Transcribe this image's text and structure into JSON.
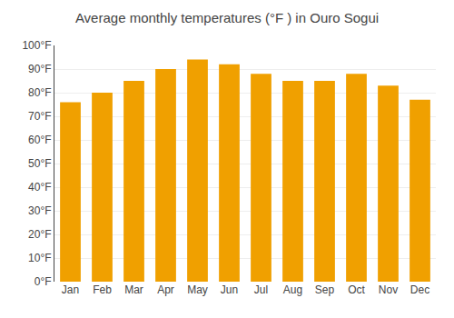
{
  "chart_data": {
    "type": "bar",
    "title": "Average monthly temperatures (°F ) in Ouro Sogui",
    "categories": [
      "Jan",
      "Feb",
      "Mar",
      "Apr",
      "May",
      "Jun",
      "Jul",
      "Aug",
      "Sep",
      "Oct",
      "Nov",
      "Dec"
    ],
    "values": [
      76,
      80,
      85,
      90,
      94,
      92,
      88,
      85,
      85,
      88,
      83,
      77
    ],
    "color": "#F0A000",
    "ylim": [
      0,
      100
    ],
    "yticks": [
      {
        "value": 0,
        "label": "0°F"
      },
      {
        "value": 10,
        "label": "10°F"
      },
      {
        "value": 20,
        "label": "20°F"
      },
      {
        "value": 30,
        "label": "30°F"
      },
      {
        "value": 40,
        "label": "40°F"
      },
      {
        "value": 50,
        "label": "50°F"
      },
      {
        "value": 60,
        "label": "60°F"
      },
      {
        "value": 70,
        "label": "70°F"
      },
      {
        "value": 80,
        "label": "80°F"
      },
      {
        "value": 90,
        "label": "90°F"
      },
      {
        "value": 100,
        "label": "100°F"
      }
    ],
    "grid": true
  }
}
